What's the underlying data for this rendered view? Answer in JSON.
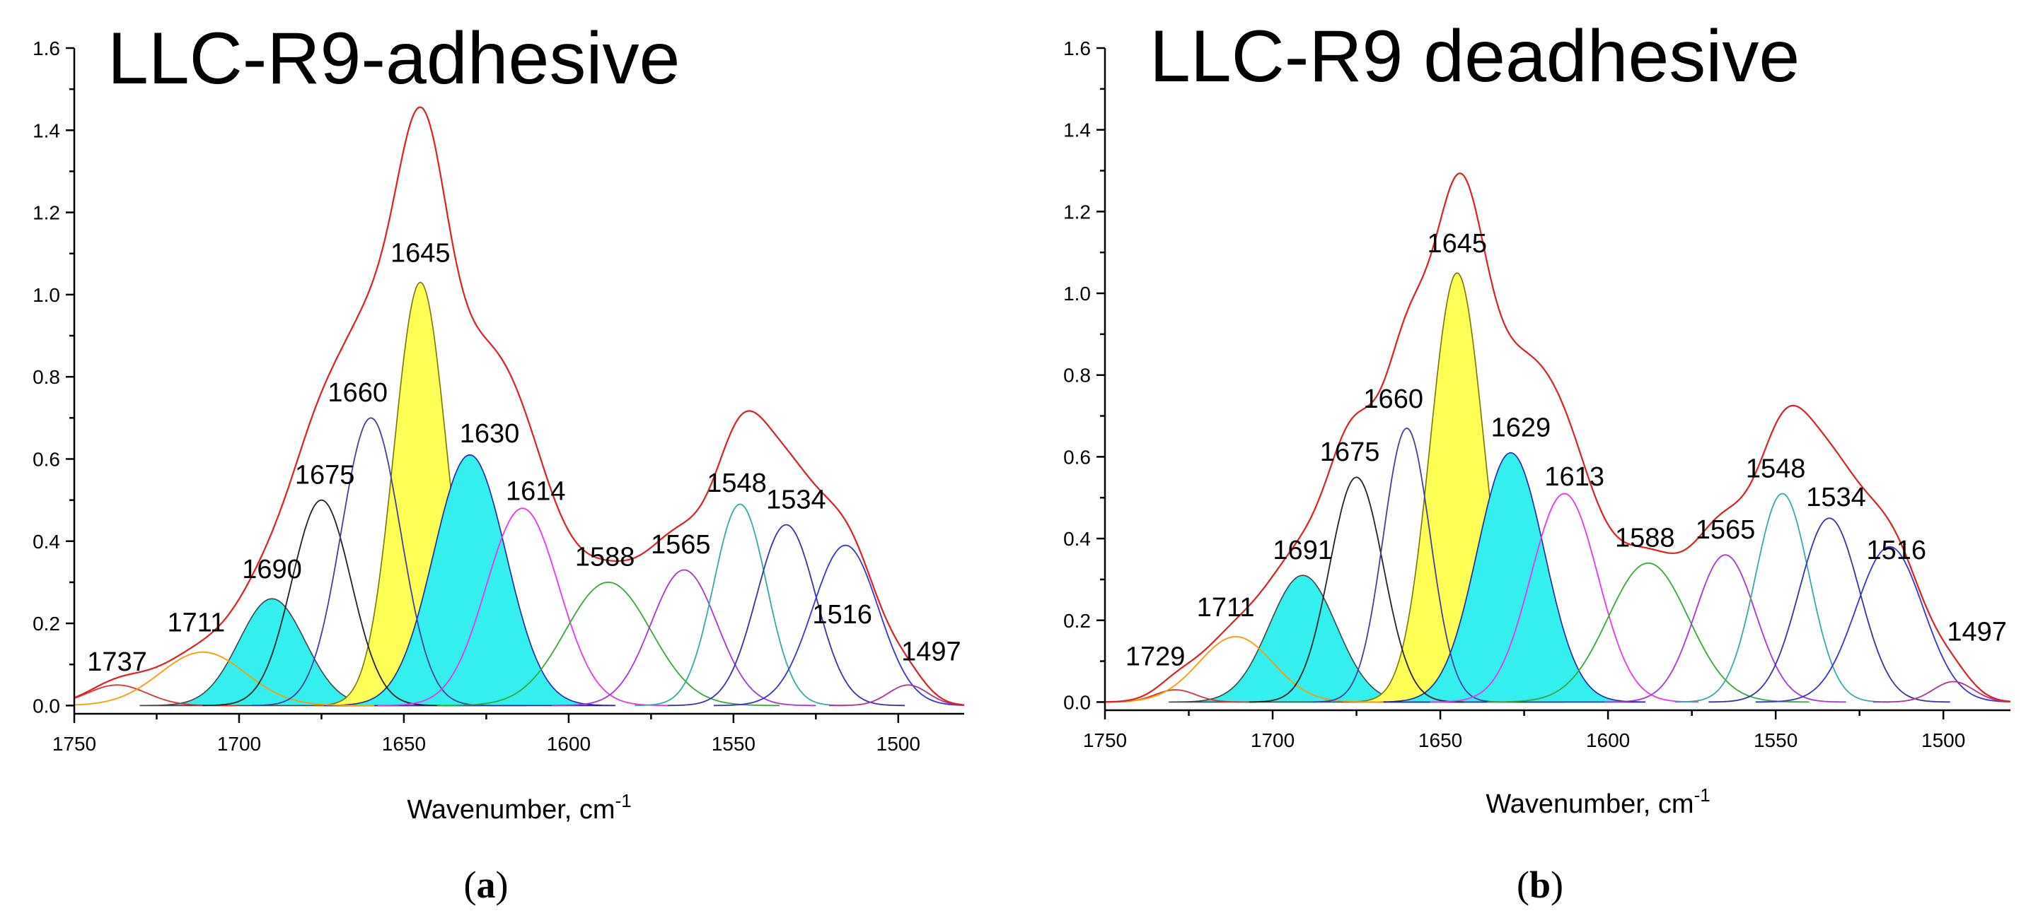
{
  "chart_data": [
    {
      "type": "line",
      "panel_label": "a",
      "title": "LLC-R9-adhesive",
      "xlabel": "Wavenumber, cm",
      "xlabel_sup": "-1",
      "ylabel": "",
      "xlim": [
        1750,
        1480
      ],
      "ylim": [
        -0.02,
        1.6
      ],
      "xticks": [
        "1750",
        "1700",
        "1650",
        "1600",
        "1550",
        "1500"
      ],
      "yticks": [
        "0.0",
        "0.2",
        "0.4",
        "0.6",
        "0.8",
        "1.0",
        "1.2",
        "1.4",
        "1.6"
      ],
      "envelope_color": "#e02020",
      "series": [
        {
          "name": "1737",
          "center": 1737,
          "height": 0.05,
          "width": 9,
          "color": "#e03030",
          "fill": ""
        },
        {
          "name": "1711",
          "center": 1711,
          "height": 0.13,
          "width": 13,
          "color": "#ff9900",
          "fill": ""
        },
        {
          "name": "1690",
          "center": 1690,
          "height": 0.26,
          "width": 10,
          "color": "#444444",
          "fill": "#33f0ee"
        },
        {
          "name": "1675",
          "center": 1675,
          "height": 0.5,
          "width": 9,
          "color": "#222222",
          "fill": ""
        },
        {
          "name": "1660",
          "center": 1660,
          "height": 0.7,
          "width": 9,
          "color": "#4040a0",
          "fill": ""
        },
        {
          "name": "1645",
          "center": 1645,
          "height": 1.03,
          "width": 8,
          "color": "#777700",
          "fill": "#ffff55"
        },
        {
          "name": "1630",
          "center": 1630,
          "height": 0.61,
          "width": 11,
          "color": "#2222aa",
          "fill": "#33f0ee"
        },
        {
          "name": "1614",
          "center": 1614,
          "height": 0.48,
          "width": 11,
          "color": "#ee33ee",
          "fill": ""
        },
        {
          "name": "1588",
          "center": 1588,
          "height": 0.3,
          "width": 13,
          "color": "#33aa33",
          "fill": ""
        },
        {
          "name": "1565",
          "center": 1565,
          "height": 0.33,
          "width": 10,
          "color": "#aa33dd",
          "fill": ""
        },
        {
          "name": "1548",
          "center": 1548,
          "height": 0.49,
          "width": 8,
          "color": "#33aaaa",
          "fill": ""
        },
        {
          "name": "1534",
          "center": 1534,
          "height": 0.44,
          "width": 9,
          "color": "#3333aa",
          "fill": ""
        },
        {
          "name": "1516",
          "center": 1516,
          "height": 0.39,
          "width": 10,
          "color": "#3333dd",
          "fill": ""
        },
        {
          "name": "1497",
          "center": 1497,
          "height": 0.05,
          "width": 6,
          "color": "#aa3399",
          "fill": ""
        }
      ],
      "labels": [
        {
          "text": "1737",
          "x": 1737,
          "y": 0.085
        },
        {
          "text": "1711",
          "x": 1713,
          "y": 0.18
        },
        {
          "text": "1690",
          "x": 1690,
          "y": 0.31
        },
        {
          "text": "1675",
          "x": 1674,
          "y": 0.54
        },
        {
          "text": "1660",
          "x": 1664,
          "y": 0.74
        },
        {
          "text": "1645",
          "x": 1645,
          "y": 1.08
        },
        {
          "text": "1630",
          "x": 1624,
          "y": 0.64
        },
        {
          "text": "1614",
          "x": 1610,
          "y": 0.5
        },
        {
          "text": "1588",
          "x": 1589,
          "y": 0.34
        },
        {
          "text": "1565",
          "x": 1566,
          "y": 0.37
        },
        {
          "text": "1548",
          "x": 1549,
          "y": 0.52
        },
        {
          "text": "1534",
          "x": 1531,
          "y": 0.48
        },
        {
          "text": "1516",
          "x": 1517,
          "y": 0.2
        },
        {
          "text": "1497",
          "x": 1490,
          "y": 0.11
        }
      ]
    },
    {
      "type": "line",
      "panel_label": "b",
      "title": "LLC-R9 deadhesive",
      "xlabel": "Wavenumber, cm",
      "xlabel_sup": "-1",
      "ylabel": "",
      "xlim": [
        1750,
        1480
      ],
      "ylim": [
        -0.02,
        1.6
      ],
      "xticks": [
        "1750",
        "1700",
        "1650",
        "1600",
        "1550",
        "1500"
      ],
      "yticks": [
        "0.0",
        "0.2",
        "0.4",
        "0.6",
        "0.8",
        "1.0",
        "1.2",
        "1.4",
        "1.6"
      ],
      "envelope_color": "#e02020",
      "series": [
        {
          "name": "1729",
          "center": 1729,
          "height": 0.03,
          "width": 6,
          "color": "#e03030",
          "fill": ""
        },
        {
          "name": "1711",
          "center": 1711,
          "height": 0.16,
          "width": 11,
          "color": "#ff9900",
          "fill": ""
        },
        {
          "name": "1691",
          "center": 1691,
          "height": 0.31,
          "width": 10,
          "color": "#444444",
          "fill": "#33f0ee"
        },
        {
          "name": "1675",
          "center": 1675,
          "height": 0.55,
          "width": 8,
          "color": "#222222",
          "fill": ""
        },
        {
          "name": "1660",
          "center": 1660,
          "height": 0.67,
          "width": 7,
          "color": "#4040a0",
          "fill": ""
        },
        {
          "name": "1645",
          "center": 1645,
          "height": 1.05,
          "width": 8,
          "color": "#777700",
          "fill": "#ffff55"
        },
        {
          "name": "1629",
          "center": 1629,
          "height": 0.61,
          "width": 10,
          "color": "#2222aa",
          "fill": "#33f0ee"
        },
        {
          "name": "1613",
          "center": 1613,
          "height": 0.51,
          "width": 10,
          "color": "#ee33ee",
          "fill": ""
        },
        {
          "name": "1588",
          "center": 1588,
          "height": 0.34,
          "width": 12,
          "color": "#33aa33",
          "fill": ""
        },
        {
          "name": "1565",
          "center": 1565,
          "height": 0.36,
          "width": 9,
          "color": "#aa33dd",
          "fill": ""
        },
        {
          "name": "1548",
          "center": 1548,
          "height": 0.51,
          "width": 8,
          "color": "#33aaaa",
          "fill": ""
        },
        {
          "name": "1534",
          "center": 1534,
          "height": 0.45,
          "width": 9,
          "color": "#3333aa",
          "fill": ""
        },
        {
          "name": "1516",
          "center": 1516,
          "height": 0.38,
          "width": 10,
          "color": "#3333dd",
          "fill": ""
        },
        {
          "name": "1497",
          "center": 1497,
          "height": 0.05,
          "width": 6,
          "color": "#aa3399",
          "fill": ""
        }
      ],
      "labels": [
        {
          "text": "1729",
          "x": 1735,
          "y": 0.09
        },
        {
          "text": "1711",
          "x": 1714,
          "y": 0.21
        },
        {
          "text": "1691",
          "x": 1691,
          "y": 0.35
        },
        {
          "text": "1675",
          "x": 1677,
          "y": 0.59
        },
        {
          "text": "1660",
          "x": 1664,
          "y": 0.72
        },
        {
          "text": "1645",
          "x": 1645,
          "y": 1.1
        },
        {
          "text": "1629",
          "x": 1626,
          "y": 0.65
        },
        {
          "text": "1613",
          "x": 1610,
          "y": 0.53
        },
        {
          "text": "1588",
          "x": 1589,
          "y": 0.38
        },
        {
          "text": "1565",
          "x": 1565,
          "y": 0.4
        },
        {
          "text": "1548",
          "x": 1550,
          "y": 0.55
        },
        {
          "text": "1534",
          "x": 1532,
          "y": 0.48
        },
        {
          "text": "1516",
          "x": 1514,
          "y": 0.35
        },
        {
          "text": "1497",
          "x": 1490,
          "y": 0.15
        }
      ]
    }
  ]
}
